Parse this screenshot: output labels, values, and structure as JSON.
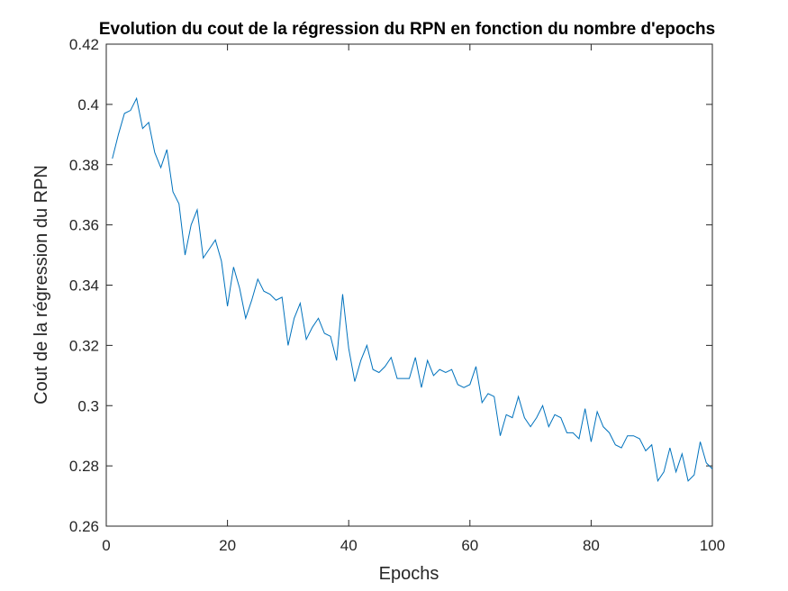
{
  "chart_data": {
    "type": "line",
    "title": "Evolution du cout de la régression du RPN en fonction du nombre d'epochs",
    "xlabel": "Epochs",
    "ylabel": "Cout de la régression du RPN",
    "xlim": [
      0,
      100
    ],
    "ylim": [
      0.26,
      0.42
    ],
    "xticks": [
      0,
      20,
      40,
      60,
      80,
      100
    ],
    "xtick_labels": [
      "0",
      "20",
      "40",
      "60",
      "80",
      "100"
    ],
    "yticks": [
      0.26,
      0.28,
      0.3,
      0.32,
      0.34,
      0.36,
      0.38,
      0.4,
      0.42
    ],
    "ytick_labels": [
      "0.26",
      "0.28",
      "0.3",
      "0.32",
      "0.34",
      "0.36",
      "0.38",
      "0.4",
      "0.42"
    ],
    "grid": false,
    "line_color": "#0072BD",
    "series": [
      {
        "x": [
          1,
          2,
          3,
          4,
          5,
          6,
          7,
          8,
          9,
          10,
          11,
          12,
          13,
          14,
          15,
          16,
          17,
          18,
          19,
          20,
          21,
          22,
          23,
          24,
          25,
          26,
          27,
          28,
          29,
          30,
          31,
          32,
          33,
          34,
          35,
          36,
          37,
          38,
          39,
          40,
          41,
          42,
          43,
          44,
          45,
          46,
          47,
          48,
          49,
          50,
          51,
          52,
          53,
          54,
          55,
          56,
          57,
          58,
          59,
          60,
          61,
          62,
          63,
          64,
          65,
          66,
          67,
          68,
          69,
          70,
          71,
          72,
          73,
          74,
          75,
          76,
          77,
          78,
          79,
          80,
          81,
          82,
          83,
          84,
          85,
          86,
          87,
          88,
          89,
          90,
          91,
          92,
          93,
          94,
          95,
          96,
          97,
          98,
          99,
          100
        ],
        "values": [
          0.382,
          0.39,
          0.397,
          0.398,
          0.402,
          0.392,
          0.394,
          0.384,
          0.379,
          0.385,
          0.371,
          0.367,
          0.35,
          0.36,
          0.365,
          0.349,
          0.352,
          0.355,
          0.348,
          0.333,
          0.346,
          0.339,
          0.329,
          0.335,
          0.342,
          0.338,
          0.337,
          0.335,
          0.336,
          0.32,
          0.329,
          0.334,
          0.322,
          0.326,
          0.329,
          0.324,
          0.323,
          0.315,
          0.337,
          0.319,
          0.308,
          0.315,
          0.32,
          0.312,
          0.311,
          0.313,
          0.316,
          0.309,
          0.309,
          0.309,
          0.316,
          0.306,
          0.315,
          0.31,
          0.312,
          0.311,
          0.312,
          0.307,
          0.306,
          0.307,
          0.313,
          0.301,
          0.304,
          0.303,
          0.29,
          0.297,
          0.296,
          0.303,
          0.296,
          0.293,
          0.296,
          0.3,
          0.293,
          0.297,
          0.296,
          0.291,
          0.291,
          0.289,
          0.299,
          0.288,
          0.298,
          0.293,
          0.291,
          0.287,
          0.286,
          0.29,
          0.29,
          0.289,
          0.285,
          0.287,
          0.275,
          0.278,
          0.286,
          0.278,
          0.284,
          0.275,
          0.277,
          0.288,
          0.281,
          0.279
        ]
      }
    ]
  }
}
